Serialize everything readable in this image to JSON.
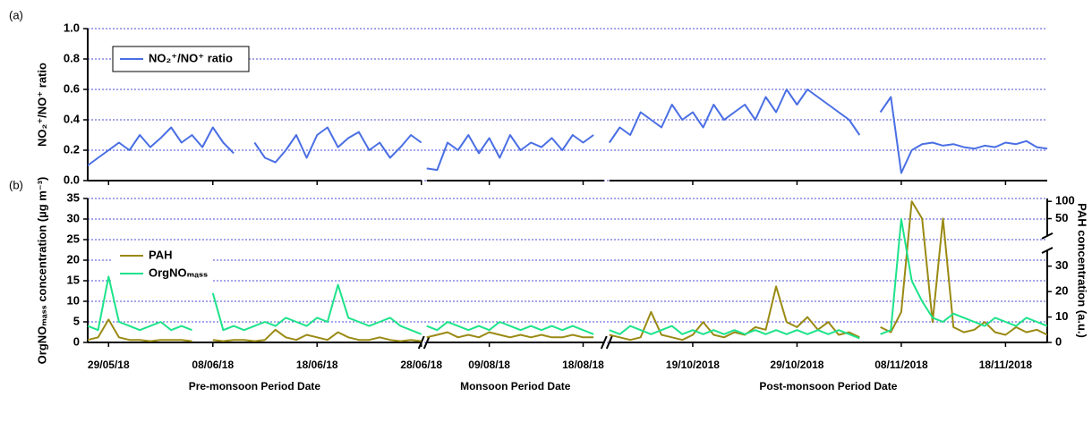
{
  "chart_data": {
    "type": "line",
    "periods": [
      {
        "label": "Pre-monsoon Period Date",
        "xlim": [
          "2018-05-27",
          "2018-06-28"
        ],
        "xticks": [
          {
            "value": "2018-05-29",
            "label": "29/05/18"
          },
          {
            "value": "2018-06-08",
            "label": "08/06/18"
          },
          {
            "value": "2018-06-18",
            "label": "18/06/18"
          },
          {
            "value": "2018-06-28",
            "label": "28/06/18"
          }
        ],
        "x": [
          "2018-05-27",
          "2018-05-28",
          "2018-05-29",
          "2018-05-30",
          "2018-05-31",
          "2018-06-01",
          "2018-06-02",
          "2018-06-03",
          "2018-06-04",
          "2018-06-05",
          "2018-06-06",
          "2018-06-07",
          "2018-06-08",
          "2018-06-09",
          "2018-06-10",
          "2018-06-11",
          "2018-06-12",
          "2018-06-13",
          "2018-06-14",
          "2018-06-15",
          "2018-06-16",
          "2018-06-17",
          "2018-06-18",
          "2018-06-19",
          "2018-06-20",
          "2018-06-21",
          "2018-06-22",
          "2018-06-23",
          "2018-06-24",
          "2018-06-25",
          "2018-06-26",
          "2018-06-27",
          "2018-06-28"
        ]
      },
      {
        "label": "Monsoon Period Date",
        "xlim": [
          "2018-08-03",
          "2018-08-20"
        ],
        "xticks": [
          {
            "value": "2018-08-09",
            "label": "09/08/18"
          },
          {
            "value": "2018-08-18",
            "label": "18/08/18"
          }
        ],
        "x": [
          "2018-08-03",
          "2018-08-04",
          "2018-08-05",
          "2018-08-06",
          "2018-08-07",
          "2018-08-08",
          "2018-08-09",
          "2018-08-10",
          "2018-08-11",
          "2018-08-12",
          "2018-08-13",
          "2018-08-14",
          "2018-08-15",
          "2018-08-16",
          "2018-08-17",
          "2018-08-18",
          "2018-08-19"
        ]
      },
      {
        "label": "Post-monsoon Period Date",
        "xlim": [
          "2018-10-11",
          "2018-11-22"
        ],
        "xticks": [
          {
            "value": "2018-10-19",
            "label": "19/10/2018"
          },
          {
            "value": "2018-10-29",
            "label": "29/10/2018"
          },
          {
            "value": "2018-11-08",
            "label": "08/11/2018"
          },
          {
            "value": "2018-11-18",
            "label": "18/11/2018"
          }
        ],
        "x": [
          "2018-10-11",
          "2018-10-12",
          "2018-10-13",
          "2018-10-14",
          "2018-10-15",
          "2018-10-16",
          "2018-10-17",
          "2018-10-18",
          "2018-10-19",
          "2018-10-20",
          "2018-10-21",
          "2018-10-22",
          "2018-10-23",
          "2018-10-24",
          "2018-10-25",
          "2018-10-26",
          "2018-10-27",
          "2018-10-28",
          "2018-10-29",
          "2018-10-30",
          "2018-10-31",
          "2018-11-01",
          "2018-11-02",
          "2018-11-03",
          "2018-11-04",
          "2018-11-05",
          "2018-11-06",
          "2018-11-07",
          "2018-11-08",
          "2018-11-09",
          "2018-11-10",
          "2018-11-11",
          "2018-11-12",
          "2018-11-13",
          "2018-11-14",
          "2018-11-15",
          "2018-11-16",
          "2018-11-17",
          "2018-11-18",
          "2018-11-19",
          "2018-11-20",
          "2018-11-21",
          "2018-11-22"
        ]
      }
    ],
    "panels": [
      {
        "label": "(a)",
        "ylabel": "NO₂⁺/NO⁺ ratio",
        "ylim": [
          0,
          1
        ],
        "yticks": [
          {
            "value": 0,
            "label": "0.0"
          },
          0.2,
          0.4,
          0.6,
          0.8,
          {
            "value": 1,
            "label": "1.0"
          }
        ],
        "grid": true,
        "legend": "upper left",
        "series": [
          {
            "name": "NO₂⁺/NO⁺ ratio",
            "color": "#4a6fe3",
            "values": [
              [
                0.1,
                0.15,
                0.2,
                0.25,
                0.2,
                0.3,
                0.22,
                0.28,
                0.35,
                0.25,
                0.3,
                0.22,
                0.35,
                0.25,
                0.18,
                null,
                0.25,
                0.15,
                0.12,
                0.2,
                0.3,
                0.15,
                0.3,
                0.35,
                0.22,
                0.28,
                0.32,
                0.2,
                0.25,
                0.15,
                0.22,
                0.3,
                0.25
              ],
              [
                0.08,
                0.07,
                0.25,
                0.2,
                0.3,
                0.18,
                0.28,
                0.15,
                0.3,
                0.2,
                0.25,
                0.22,
                0.28,
                0.2,
                0.3,
                0.25,
                0.3
              ],
              [
                0.25,
                0.35,
                0.3,
                0.45,
                0.4,
                0.35,
                0.5,
                0.4,
                0.45,
                0.35,
                0.5,
                0.4,
                0.45,
                0.5,
                0.4,
                0.55,
                0.45,
                0.6,
                0.5,
                0.6,
                0.55,
                0.5,
                0.45,
                0.4,
                0.3,
                null,
                0.45,
                0.55,
                0.05,
                0.2,
                0.24,
                0.25,
                0.23,
                0.24,
                0.22,
                0.21,
                0.23,
                0.22,
                0.25,
                0.24,
                0.26,
                0.22,
                0.21
              ]
            ]
          }
        ]
      },
      {
        "label": "(b)",
        "ylabel": "OrgNOₘₐₛₛ concentration (µg m⁻³)",
        "ylim": [
          0,
          35
        ],
        "yticks": [
          0,
          5,
          10,
          15,
          20,
          25,
          30,
          35
        ],
        "y2label": "PAH concentration (a.u.)",
        "y2segments": [
          [
            0,
            30
          ],
          [
            50,
            100
          ]
        ],
        "y2ticks": [
          0,
          10,
          20,
          30,
          50,
          100
        ],
        "grid": true,
        "legend": "upper left",
        "series": [
          {
            "name": "PAH",
            "color": "#9a8a14",
            "axis": "y2",
            "values": [
              [
                1,
                2,
                9,
                2,
                1,
                1,
                0.5,
                1,
                1,
                1,
                0.5,
                null,
                1,
                0.5,
                1,
                1,
                0.5,
                1,
                5,
                2,
                1,
                3,
                2,
                1,
                4,
                2,
                1,
                1,
                2,
                1,
                0.5,
                1,
                0.5
              ],
              [
                2,
                3,
                4,
                2,
                3,
                2,
                4,
                3,
                2,
                3,
                2,
                3,
                2,
                2,
                3,
                2,
                2
              ],
              [
                3,
                2,
                1,
                2,
                12,
                3,
                2,
                1,
                3,
                8,
                3,
                2,
                4,
                3,
                6,
                5,
                22,
                8,
                6,
                10,
                5,
                8,
                3,
                4,
                2,
                null,
                6,
                4,
                12,
                100,
                50,
                8,
                50,
                6,
                4,
                5,
                8,
                4,
                3,
                6,
                4,
                5,
                3
              ]
            ]
          },
          {
            "name": "OrgNOₘₐₛₛ",
            "color": "#1de38a",
            "values": [
              [
                4,
                3,
                16,
                5,
                4,
                3,
                4,
                5,
                3,
                4,
                3,
                null,
                12,
                3,
                4,
                3,
                4,
                5,
                4,
                6,
                5,
                4,
                6,
                5,
                14,
                6,
                5,
                4,
                5,
                6,
                4,
                3,
                2
              ],
              [
                4,
                3,
                5,
                4,
                3,
                4,
                3,
                5,
                4,
                3,
                4,
                3,
                4,
                3,
                4,
                3,
                2
              ],
              [
                3,
                2,
                4,
                3,
                2,
                3,
                4,
                2,
                3,
                2,
                3,
                2,
                3,
                2,
                3,
                2,
                3,
                2,
                3,
                2,
                3,
                2,
                3,
                2,
                1,
                null,
                2,
                3,
                30,
                15,
                10,
                6,
                5,
                7,
                6,
                5,
                4,
                6,
                5,
                4,
                6,
                5,
                4
              ]
            ]
          }
        ]
      }
    ]
  }
}
